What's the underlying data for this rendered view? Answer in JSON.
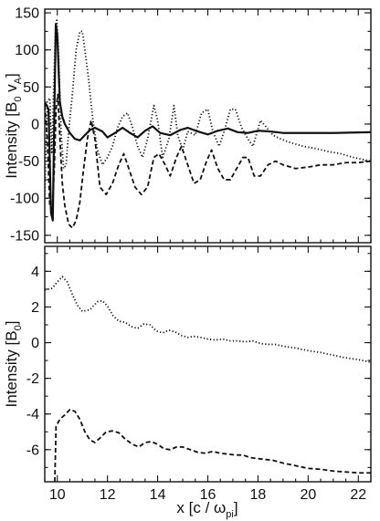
{
  "chart_data": [
    {
      "type": "line",
      "ylabel": "Intensity [B₀ v_A]",
      "ylabel_main": "Intensity [B",
      "ylabel_sub1": "0",
      "ylabel_mid": " v",
      "ylabel_sub2": "A",
      "ylabel_end": "]",
      "xlim": [
        9.5,
        22.5
      ],
      "ylim": [
        -160,
        155
      ],
      "x_ticks": [
        10,
        12,
        14,
        16,
        18,
        20,
        22
      ],
      "y_ticks": [
        150,
        100,
        50,
        0,
        -50,
        -100,
        -150
      ],
      "y_tick_labels": [
        "150",
        "100",
        "50",
        "0",
        "-50",
        "-100",
        "-150"
      ],
      "series": [
        {
          "style": "solid",
          "color": "#111111",
          "points": [
            [
              9.5,
              30
            ],
            [
              9.65,
              20
            ],
            [
              9.75,
              -120
            ],
            [
              9.82,
              -130
            ],
            [
              9.88,
              10
            ],
            [
              9.94,
              135
            ],
            [
              10.0,
              120
            ],
            [
              10.1,
              30
            ],
            [
              10.2,
              10
            ],
            [
              10.3,
              0
            ],
            [
              10.5,
              -12
            ],
            [
              10.7,
              -20
            ],
            [
              10.9,
              -22
            ],
            [
              11.1,
              -15
            ],
            [
              11.3,
              -8
            ],
            [
              11.5,
              -5
            ],
            [
              11.8,
              -10
            ],
            [
              12.0,
              -18
            ],
            [
              12.3,
              -12
            ],
            [
              12.6,
              -5
            ],
            [
              12.9,
              -12
            ],
            [
              13.2,
              -18
            ],
            [
              13.5,
              -9
            ],
            [
              13.8,
              -3
            ],
            [
              14.1,
              -12
            ],
            [
              14.5,
              -15
            ],
            [
              14.9,
              -8
            ],
            [
              15.2,
              -5
            ],
            [
              15.6,
              -10
            ],
            [
              16.0,
              -14
            ],
            [
              16.4,
              -9
            ],
            [
              16.8,
              -6
            ],
            [
              17.2,
              -11
            ],
            [
              17.6,
              -12
            ],
            [
              18.0,
              -9
            ],
            [
              18.5,
              -10
            ],
            [
              19.0,
              -12
            ],
            [
              20.0,
              -12
            ],
            [
              21.0,
              -12
            ],
            [
              22.5,
              -11
            ]
          ]
        },
        {
          "style": "dotted",
          "color": "#111111",
          "points": [
            [
              9.5,
              -95
            ],
            [
              9.6,
              30
            ],
            [
              9.7,
              35
            ],
            [
              9.78,
              -40
            ],
            [
              9.86,
              50
            ],
            [
              9.92,
              120
            ],
            [
              9.98,
              140
            ],
            [
              10.05,
              95
            ],
            [
              10.15,
              -10
            ],
            [
              10.25,
              -60
            ],
            [
              10.35,
              -55
            ],
            [
              10.45,
              -10
            ],
            [
              10.6,
              40
            ],
            [
              10.75,
              100
            ],
            [
              10.9,
              125
            ],
            [
              11.0,
              125
            ],
            [
              11.1,
              100
            ],
            [
              11.25,
              60
            ],
            [
              11.4,
              10
            ],
            [
              11.6,
              -35
            ],
            [
              11.8,
              -55
            ],
            [
              12.0,
              -45
            ],
            [
              12.2,
              -30
            ],
            [
              12.4,
              -5
            ],
            [
              12.6,
              10
            ],
            [
              12.8,
              15
            ],
            [
              13.0,
              -5
            ],
            [
              13.2,
              -30
            ],
            [
              13.4,
              -45
            ],
            [
              13.6,
              -20
            ],
            [
              13.85,
              25
            ],
            [
              14.0,
              5
            ],
            [
              14.2,
              -45
            ],
            [
              14.45,
              -20
            ],
            [
              14.65,
              25
            ],
            [
              14.8,
              -15
            ],
            [
              15.0,
              -35
            ],
            [
              15.2,
              -10
            ],
            [
              15.5,
              -15
            ],
            [
              15.75,
              15
            ],
            [
              16.0,
              20
            ],
            [
              16.2,
              -10
            ],
            [
              16.45,
              -30
            ],
            [
              16.65,
              -10
            ],
            [
              16.9,
              20
            ],
            [
              17.1,
              20
            ],
            [
              17.35,
              -5
            ],
            [
              17.6,
              -20
            ],
            [
              17.8,
              -30
            ],
            [
              18.1,
              5
            ],
            [
              18.35,
              -5
            ],
            [
              18.6,
              -15
            ],
            [
              18.9,
              -20
            ],
            [
              19.3,
              -25
            ],
            [
              19.8,
              -30
            ],
            [
              20.3,
              -33
            ],
            [
              20.8,
              -37
            ],
            [
              21.3,
              -40
            ],
            [
              21.8,
              -45
            ],
            [
              22.5,
              -50
            ]
          ]
        },
        {
          "style": "dashed",
          "color": "#111111",
          "points": [
            [
              9.5,
              25
            ],
            [
              9.6,
              -20
            ],
            [
              9.7,
              -110
            ],
            [
              9.8,
              -120
            ],
            [
              9.88,
              -60
            ],
            [
              9.95,
              20
            ],
            [
              10.02,
              40
            ],
            [
              10.12,
              -30
            ],
            [
              10.2,
              -80
            ],
            [
              10.3,
              -110
            ],
            [
              10.45,
              -135
            ],
            [
              10.6,
              -140
            ],
            [
              10.75,
              -130
            ],
            [
              10.9,
              -105
            ],
            [
              11.05,
              -60
            ],
            [
              11.2,
              -20
            ],
            [
              11.35,
              5
            ],
            [
              11.5,
              -20
            ],
            [
              11.7,
              -85
            ],
            [
              11.95,
              -95
            ],
            [
              12.2,
              -80
            ],
            [
              12.45,
              -55
            ],
            [
              12.65,
              -40
            ],
            [
              12.85,
              -60
            ],
            [
              13.1,
              -85
            ],
            [
              13.35,
              -95
            ],
            [
              13.6,
              -85
            ],
            [
              13.85,
              -45
            ],
            [
              14.05,
              -40
            ],
            [
              14.3,
              -55
            ],
            [
              14.5,
              -70
            ],
            [
              14.75,
              -45
            ],
            [
              14.95,
              -30
            ],
            [
              15.2,
              -55
            ],
            [
              15.45,
              -80
            ],
            [
              15.7,
              -75
            ],
            [
              15.95,
              -50
            ],
            [
              16.15,
              -35
            ],
            [
              16.4,
              -60
            ],
            [
              16.65,
              -75
            ],
            [
              16.9,
              -75
            ],
            [
              17.15,
              -60
            ],
            [
              17.4,
              -45
            ],
            [
              17.6,
              -45
            ],
            [
              17.85,
              -70
            ],
            [
              18.1,
              -70
            ],
            [
              18.4,
              -55
            ],
            [
              18.7,
              -50
            ],
            [
              19.0,
              -55
            ],
            [
              19.5,
              -60
            ],
            [
              20.0,
              -58
            ],
            [
              20.5,
              -55
            ],
            [
              21.0,
              -55
            ],
            [
              21.5,
              -52
            ],
            [
              22.0,
              -52
            ],
            [
              22.5,
              -50
            ]
          ]
        }
      ]
    },
    {
      "type": "line",
      "ylabel": "Intensity [B₀]",
      "ylabel_main": "Intensity [B",
      "ylabel_sub1": "0",
      "ylabel_end": "]",
      "xlabel": "x [c / ω_pi]",
      "xlabel_main": "x [c / ω",
      "xlabel_sub": "pi",
      "xlabel_end": "]",
      "xlim": [
        9.5,
        22.5
      ],
      "ylim": [
        -7.8,
        5.4
      ],
      "x_ticks": [
        10,
        12,
        14,
        16,
        18,
        20,
        22
      ],
      "x_tick_labels": [
        "10",
        "12",
        "14",
        "16",
        "18",
        "20",
        "22"
      ],
      "y_ticks": [
        4,
        2,
        0,
        -2,
        -4,
        -6
      ],
      "y_tick_labels": [
        "4",
        "2",
        "0",
        "-2",
        "-4",
        "-6"
      ],
      "series": [
        {
          "style": "dotted",
          "color": "#111111",
          "points": [
            [
              9.5,
              2.95
            ],
            [
              9.8,
              3.05
            ],
            [
              10.0,
              3.4
            ],
            [
              10.2,
              3.7
            ],
            [
              10.4,
              3.4
            ],
            [
              10.6,
              2.7
            ],
            [
              10.8,
              2.1
            ],
            [
              11.0,
              1.75
            ],
            [
              11.3,
              1.85
            ],
            [
              11.6,
              2.3
            ],
            [
              11.8,
              2.35
            ],
            [
              12.0,
              2.05
            ],
            [
              12.2,
              1.55
            ],
            [
              12.45,
              1.2
            ],
            [
              12.7,
              1.15
            ],
            [
              12.95,
              0.9
            ],
            [
              13.2,
              0.8
            ],
            [
              13.45,
              1.05
            ],
            [
              13.7,
              1.0
            ],
            [
              13.95,
              0.65
            ],
            [
              14.2,
              0.55
            ],
            [
              14.45,
              0.7
            ],
            [
              14.7,
              0.6
            ],
            [
              14.95,
              0.4
            ],
            [
              15.2,
              0.3
            ],
            [
              15.45,
              0.35
            ],
            [
              15.7,
              0.3
            ],
            [
              16.0,
              0.2
            ],
            [
              16.3,
              0.15
            ],
            [
              16.6,
              0.2
            ],
            [
              16.9,
              0.1
            ],
            [
              17.2,
              0.1
            ],
            [
              17.5,
              0.05
            ],
            [
              17.8,
              0.1
            ],
            [
              18.1,
              -0.05
            ],
            [
              18.4,
              -0.1
            ],
            [
              18.7,
              -0.1
            ],
            [
              19.0,
              -0.2
            ],
            [
              19.5,
              -0.3
            ],
            [
              20.0,
              -0.45
            ],
            [
              20.5,
              -0.55
            ],
            [
              21.0,
              -0.7
            ],
            [
              21.5,
              -0.85
            ],
            [
              22.0,
              -0.95
            ],
            [
              22.5,
              -1.1
            ]
          ]
        },
        {
          "style": "dashed",
          "color": "#111111",
          "points": [
            [
              9.9,
              -7.8
            ],
            [
              9.95,
              -4.7
            ],
            [
              10.1,
              -4.3
            ],
            [
              10.3,
              -4.05
            ],
            [
              10.5,
              -3.75
            ],
            [
              10.7,
              -3.85
            ],
            [
              10.9,
              -4.3
            ],
            [
              11.1,
              -5.0
            ],
            [
              11.3,
              -5.45
            ],
            [
              11.5,
              -5.6
            ],
            [
              11.7,
              -5.35
            ],
            [
              11.95,
              -5.0
            ],
            [
              12.2,
              -4.95
            ],
            [
              12.45,
              -5.05
            ],
            [
              12.7,
              -5.4
            ],
            [
              13.0,
              -5.7
            ],
            [
              13.25,
              -5.85
            ],
            [
              13.5,
              -5.6
            ],
            [
              13.75,
              -5.55
            ],
            [
              14.0,
              -5.7
            ],
            [
              14.25,
              -5.95
            ],
            [
              14.5,
              -6.0
            ],
            [
              14.75,
              -5.85
            ],
            [
              15.0,
              -5.85
            ],
            [
              15.3,
              -6.0
            ],
            [
              15.6,
              -6.15
            ],
            [
              15.9,
              -6.2
            ],
            [
              16.2,
              -6.1
            ],
            [
              16.5,
              -6.2
            ],
            [
              16.8,
              -6.25
            ],
            [
              17.1,
              -6.3
            ],
            [
              17.4,
              -6.3
            ],
            [
              17.7,
              -6.45
            ],
            [
              18.0,
              -6.5
            ],
            [
              18.3,
              -6.55
            ],
            [
              18.6,
              -6.6
            ],
            [
              19.0,
              -6.75
            ],
            [
              19.5,
              -6.9
            ],
            [
              20.0,
              -7.05
            ],
            [
              20.5,
              -7.1
            ],
            [
              21.0,
              -7.2
            ],
            [
              21.5,
              -7.25
            ],
            [
              22.0,
              -7.3
            ],
            [
              22.5,
              -7.3
            ]
          ]
        }
      ]
    }
  ]
}
